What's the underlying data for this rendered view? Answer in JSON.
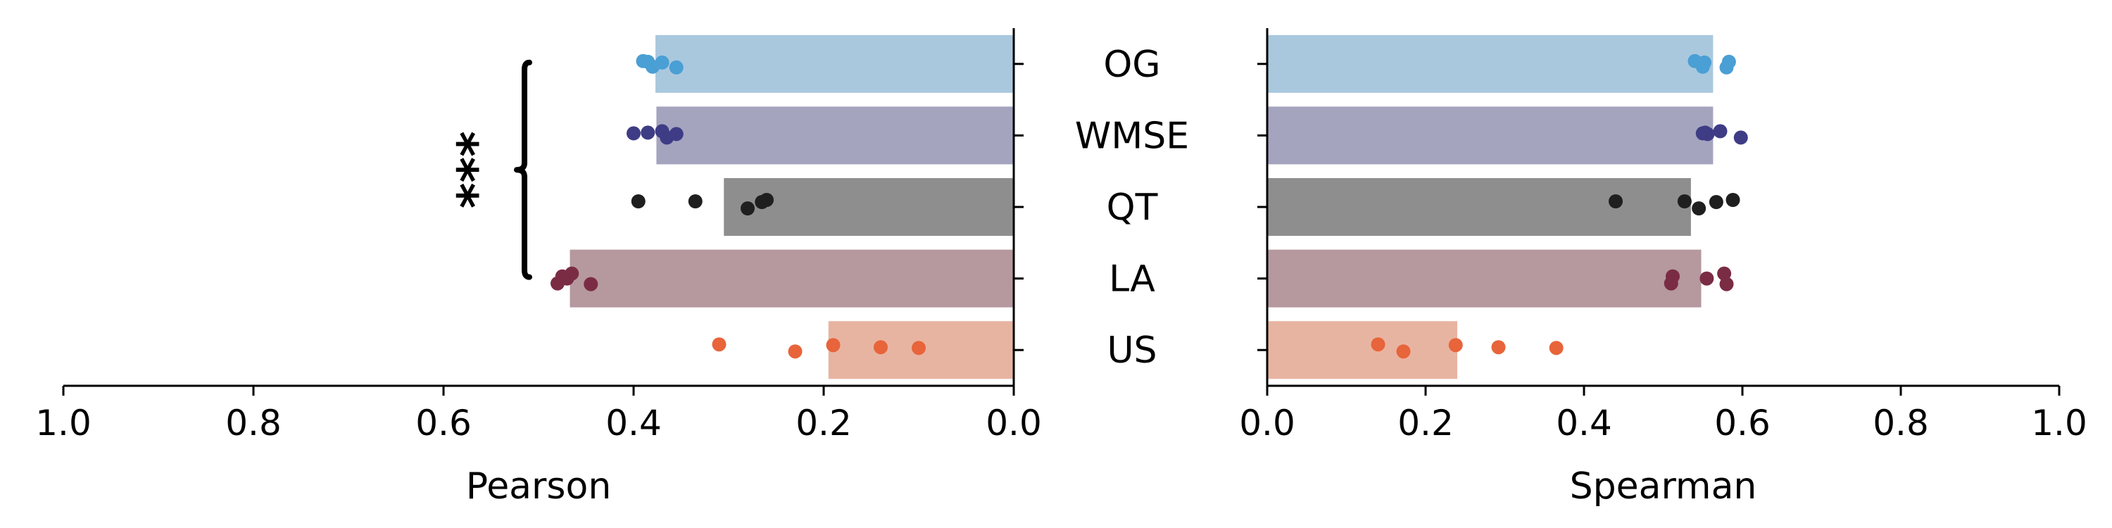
{
  "chart_data": {
    "type": "bar",
    "orientation": "horizontal",
    "categories": [
      "OG",
      "WMSE",
      "QT",
      "LA",
      "US"
    ],
    "colors": {
      "OG": {
        "bar": "#a9c8de",
        "point": "#4a9fd4"
      },
      "WMSE": {
        "bar": "#a4a4bf",
        "point": "#3f3c86"
      },
      "QT": {
        "bar": "#8e8e8e",
        "point": "#1f1f1f"
      },
      "LA": {
        "bar": "#b6989f",
        "point": "#7a2c44"
      },
      "US": {
        "bar": "#e8b4a2",
        "point": "#e8643a"
      }
    },
    "panels": [
      {
        "id": "pearson",
        "xlabel": "Pearson",
        "xlim": [
          1.0,
          0.0
        ],
        "xticks": [
          "1.0",
          "0.8",
          "0.6",
          "0.4",
          "0.2",
          "0.0"
        ],
        "inverted": true,
        "bars": [
          0.377,
          0.376,
          0.305,
          0.467,
          0.195
        ],
        "points": [
          [
            0.39,
            0.38,
            0.37,
            0.355,
            0.385
          ],
          [
            0.4,
            0.385,
            0.37,
            0.365,
            0.355
          ],
          [
            0.395,
            0.335,
            0.28,
            0.265,
            0.26
          ],
          [
            0.48,
            0.475,
            0.47,
            0.465,
            0.445
          ],
          [
            0.31,
            0.23,
            0.19,
            0.14,
            0.1
          ]
        ]
      },
      {
        "id": "spearman",
        "xlabel": "Spearman",
        "xlim": [
          0.0,
          1.0
        ],
        "xticks": [
          "0.0",
          "0.2",
          "0.4",
          "0.6",
          "0.8",
          "1.0"
        ],
        "inverted": false,
        "bars": [
          0.563,
          0.563,
          0.535,
          0.548,
          0.24
        ],
        "points": [
          [
            0.54,
            0.55,
            0.552,
            0.58,
            0.583
          ],
          [
            0.55,
            0.553,
            0.572,
            0.598,
            0.556
          ],
          [
            0.44,
            0.527,
            0.545,
            0.567,
            0.588
          ],
          [
            0.51,
            0.512,
            0.555,
            0.577,
            0.58
          ],
          [
            0.14,
            0.172,
            0.238,
            0.292,
            0.365
          ]
        ]
      }
    ],
    "annotation": {
      "text": "***",
      "from": "OG",
      "to": "LA"
    }
  }
}
